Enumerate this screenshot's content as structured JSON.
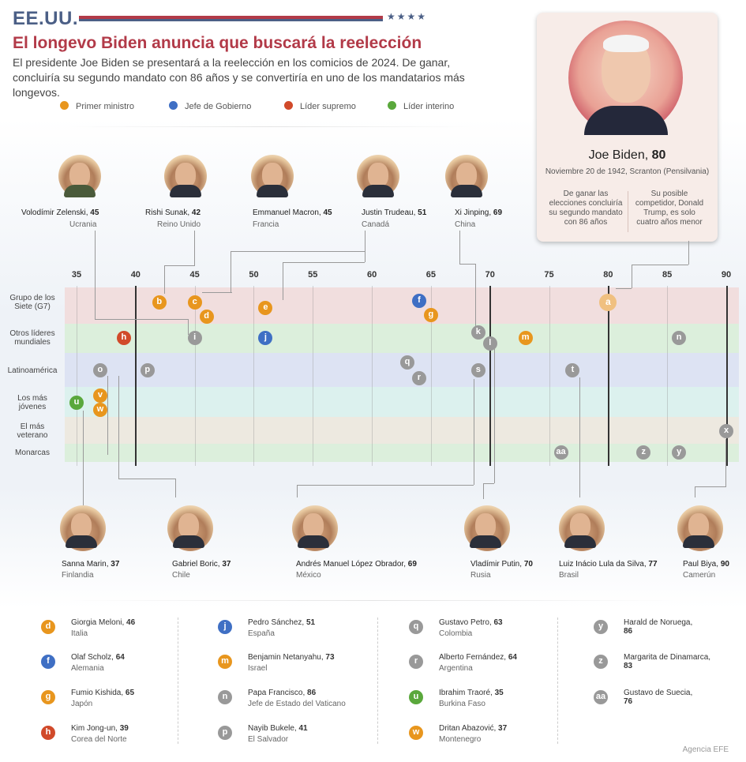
{
  "header": {
    "section": "EE.UU.",
    "stars": "★★★★",
    "headline": "El longevo Biden anuncia que buscará la reelección",
    "intro": "El presidente Joe Biden se presentará a la reelección en los comicios de 2024. De ganar, concluiría su segundo mandato con 86 años y se convertiría en uno de los mandatarios más longevos."
  },
  "legend": [
    {
      "label": "Primer ministro",
      "color": "#e8961e"
    },
    {
      "label": "Jefe de Gobierno",
      "color": "#3f6fc4"
    },
    {
      "label": "Líder supremo",
      "color": "#d14a2a"
    },
    {
      "label": "Líder interino",
      "color": "#5aa83c"
    }
  ],
  "biden": {
    "name": "Joe Biden,",
    "age": "80",
    "birth": "Noviembre 20 de 1942, Scranton (Pensilvania)",
    "note_left": "De ganar las elecciones concluiría su segundo mandato con 86 años",
    "note_right": "Su posible competidor, Donald Trump, es solo cuatro años menor"
  },
  "chart_data": {
    "type": "scatter",
    "x_ticks": [
      "35",
      "40",
      "45",
      "50",
      "55",
      "60",
      "65",
      "70",
      "75",
      "80",
      "85",
      "90"
    ],
    "xlim": [
      35,
      90
    ],
    "categories": [
      "Grupo de los Siete (G7)",
      "Otros líderes mundiales",
      "Latinoamérica",
      "Los más jóvenes",
      "El más veterano",
      "Monarcas"
    ],
    "category_colors": [
      "#f1dede",
      "#dcefdc",
      "#dde3f3",
      "#dcf1ee",
      "#ede9e0",
      "#dcefdc"
    ],
    "grid_strong": [
      40,
      70,
      80,
      90
    ],
    "grid_light": [
      35,
      45,
      50,
      55,
      60,
      65,
      75,
      85
    ],
    "points": [
      {
        "id": "a",
        "age": 80,
        "group": 0,
        "sub": 0,
        "type": "Primer ministro",
        "color": "#f0c080",
        "big": true
      },
      {
        "id": "b",
        "age": 42,
        "group": 0,
        "sub": 0,
        "color": "#e8961e"
      },
      {
        "id": "c",
        "age": 45,
        "group": 0,
        "sub": 0,
        "color": "#e8961e"
      },
      {
        "id": "d",
        "age": 46,
        "group": 0,
        "sub": 1,
        "color": "#e8961e"
      },
      {
        "id": "e",
        "age": 51,
        "group": 0,
        "sub": 0.4,
        "color": "#e8961e"
      },
      {
        "id": "f",
        "age": 64,
        "group": 0,
        "sub": -0.1,
        "color": "#3f6fc4"
      },
      {
        "id": "g",
        "age": 65,
        "group": 0,
        "sub": 0.9,
        "color": "#e8961e"
      },
      {
        "id": "h",
        "age": 39,
        "group": 1,
        "sub": 0,
        "color": "#d14a2a"
      },
      {
        "id": "i",
        "age": 45,
        "group": 1,
        "sub": 0,
        "color": "#999999"
      },
      {
        "id": "j",
        "age": 51,
        "group": 1,
        "sub": 0,
        "color": "#3f6fc4"
      },
      {
        "id": "k",
        "age": 69,
        "group": 1,
        "sub": -0.5,
        "color": "#999999"
      },
      {
        "id": "l",
        "age": 70,
        "group": 1,
        "sub": 0.5,
        "color": "#999999"
      },
      {
        "id": "m",
        "age": 73,
        "group": 1,
        "sub": 0,
        "color": "#e8961e"
      },
      {
        "id": "n",
        "age": 86,
        "group": 1,
        "sub": 0,
        "color": "#999999"
      },
      {
        "id": "o",
        "age": 37,
        "group": 2,
        "sub": 0,
        "color": "#999999"
      },
      {
        "id": "p",
        "age": 41,
        "group": 2,
        "sub": 0,
        "color": "#999999"
      },
      {
        "id": "q",
        "age": 63,
        "group": 2,
        "sub": -0.6,
        "color": "#999999"
      },
      {
        "id": "r",
        "age": 64,
        "group": 2,
        "sub": 0.6,
        "color": "#999999"
      },
      {
        "id": "s",
        "age": 69,
        "group": 2,
        "sub": 0,
        "color": "#999999"
      },
      {
        "id": "t",
        "age": 77,
        "group": 2,
        "sub": 0,
        "color": "#999999"
      },
      {
        "id": "u",
        "age": 35,
        "group": 3,
        "sub": 0,
        "color": "#5aa83c"
      },
      {
        "id": "v",
        "age": 37,
        "group": 3,
        "sub": -0.6,
        "color": "#e8961e"
      },
      {
        "id": "w",
        "age": 37,
        "group": 3,
        "sub": 0.6,
        "color": "#e8961e"
      },
      {
        "id": "x",
        "age": 90,
        "group": 4,
        "sub": 0,
        "color": "#999999"
      },
      {
        "id": "y",
        "age": 86,
        "group": 5,
        "sub": 0,
        "color": "#999999"
      },
      {
        "id": "z",
        "age": 83,
        "group": 5,
        "sub": 0,
        "color": "#999999"
      },
      {
        "id": "aa",
        "age": 76,
        "group": 5,
        "sub": 0,
        "color": "#999999"
      }
    ]
  },
  "cat_labels": [
    "Grupo de los\nSiete (G7)",
    "Otros líderes\nmundiales",
    "Latinoamérica",
    "Los más\njóvenes",
    "El más\nveterano",
    "Monarcas"
  ],
  "top_leaders": [
    {
      "name": "Volodímir Zelenski,",
      "age": "45",
      "country": "Ucrania"
    },
    {
      "name": "Rishi Sunak,",
      "age": "42",
      "country": "Reino Unido"
    },
    {
      "name": "Emmanuel Macron,",
      "age": "45",
      "country": "Francia"
    },
    {
      "name": "Justin Trudeau,",
      "age": "51",
      "country": "Canadá"
    },
    {
      "name": "Xi Jinping,",
      "age": "69",
      "country": "China"
    }
  ],
  "bottom_leaders": [
    {
      "name": "Sanna Marin,",
      "age": "37",
      "country": "Finlandia"
    },
    {
      "name": "Gabriel Boric,",
      "age": "37",
      "country": "Chile"
    },
    {
      "name": "Andrés Manuel López Obrador,",
      "age": "69",
      "country": "México"
    },
    {
      "name": "Vladímir Putin,",
      "age": "70",
      "country": "Rusia"
    },
    {
      "name": "Luiz Inácio Lula da Silva,",
      "age": "77",
      "country": "Brasil"
    },
    {
      "name": "Paul Biya,",
      "age": "90",
      "country": "Camerún"
    }
  ],
  "list": [
    {
      "id": "d",
      "name": "Giorgia Meloni,",
      "age": "46",
      "country": "Italia",
      "color": "#e8961e"
    },
    {
      "id": "f",
      "name": "Olaf Scholz,",
      "age": "64",
      "country": "Alemania",
      "color": "#3f6fc4"
    },
    {
      "id": "g",
      "name": "Fumio Kishida,",
      "age": "65",
      "country": "Japón",
      "color": "#e8961e"
    },
    {
      "id": "h",
      "name": "Kim Jong-un,",
      "age": "39",
      "country": "Corea del Norte",
      "color": "#d14a2a"
    },
    {
      "id": "j",
      "name": "Pedro Sánchez,",
      "age": "51",
      "country": "España",
      "color": "#3f6fc4"
    },
    {
      "id": "m",
      "name": "Benjamin Netanyahu,",
      "age": "73",
      "country": "Israel",
      "color": "#e8961e"
    },
    {
      "id": "n",
      "name": "Papa Francisco,",
      "age": "86",
      "country": "Jefe de Estado del Vaticano",
      "color": "#999999"
    },
    {
      "id": "p",
      "name": "Nayib Bukele,",
      "age": "41",
      "country": "El Salvador",
      "color": "#999999"
    },
    {
      "id": "q",
      "name": "Gustavo Petro,",
      "age": "63",
      "country": "Colombia",
      "color": "#999999"
    },
    {
      "id": "r",
      "name": "Alberto Fernández,",
      "age": "64",
      "country": "Argentina",
      "color": "#999999"
    },
    {
      "id": "u",
      "name": "Ibrahim Traoré,",
      "age": "35",
      "country": "Burkina Faso",
      "color": "#5aa83c"
    },
    {
      "id": "w",
      "name": "Dritan Abazović,",
      "age": "37",
      "country": "Montenegro",
      "color": "#e8961e"
    },
    {
      "id": "y",
      "name": "Harald de Noruega,",
      "age": "86",
      "country": "",
      "color": "#999999"
    },
    {
      "id": "z",
      "name": "Margarita de Dinamarca,",
      "age": "83",
      "country": "",
      "color": "#999999"
    },
    {
      "id": "aa",
      "name": "Gustavo de Suecia,",
      "age": "76",
      "country": "",
      "color": "#999999"
    }
  ],
  "credit": "Agencia EFE"
}
